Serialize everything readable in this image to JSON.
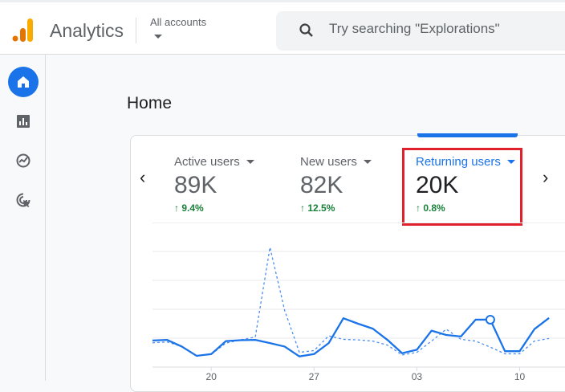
{
  "header": {
    "app_title": "Analytics",
    "account_label": "All accounts",
    "search_placeholder": "Try searching \"Explorations\""
  },
  "sidebar": {
    "items": [
      {
        "name": "home",
        "active": true
      },
      {
        "name": "reports"
      },
      {
        "name": "explore"
      },
      {
        "name": "advertising"
      }
    ]
  },
  "main": {
    "page_title": "Home",
    "metrics": [
      {
        "label": "Active users",
        "value": "89K",
        "change": "9.4%"
      },
      {
        "label": "New users",
        "value": "82K",
        "change": "12.5%"
      },
      {
        "label": "Returning users",
        "value": "20K",
        "change": "0.8%",
        "selected": true
      }
    ]
  },
  "colors": {
    "accent": "#1a73e8",
    "positive": "#188038",
    "highlight": "#e0202a"
  },
  "chart_data": {
    "type": "line",
    "x": [
      "16",
      "17",
      "18",
      "19",
      "20",
      "21",
      "22",
      "23",
      "24",
      "25",
      "26",
      "27",
      "28",
      "29",
      "30",
      "31",
      "01",
      "02",
      "03",
      "04",
      "05",
      "06",
      "07",
      "08",
      "09",
      "10",
      "11",
      "12"
    ],
    "x_ticks": [
      "20",
      "27",
      "03",
      "10"
    ],
    "series": [
      {
        "name": "current",
        "style": "solid",
        "values": [
          0.92,
          0.94,
          0.71,
          0.39,
          0.45,
          0.9,
          0.93,
          0.94,
          0.83,
          0.71,
          0.37,
          0.45,
          0.83,
          1.69,
          1.5,
          1.33,
          0.94,
          0.48,
          0.6,
          1.26,
          1.11,
          1.06,
          1.64,
          1.64,
          0.55,
          0.55,
          1.31,
          1.7
        ],
        "highlight_index": 23
      },
      {
        "name": "previous",
        "style": "dashed",
        "values": [
          0.84,
          0.87,
          0.71,
          0.39,
          0.44,
          0.83,
          0.94,
          1.04,
          4.14,
          1.96,
          0.51,
          0.57,
          1.08,
          0.96,
          0.94,
          0.9,
          0.76,
          0.42,
          0.51,
          0.9,
          1.31,
          0.96,
          0.9,
          0.69,
          0.46,
          0.46,
          0.9,
          0.99
        ]
      }
    ],
    "ylim": [
      0,
      4
    ],
    "grid": true
  }
}
